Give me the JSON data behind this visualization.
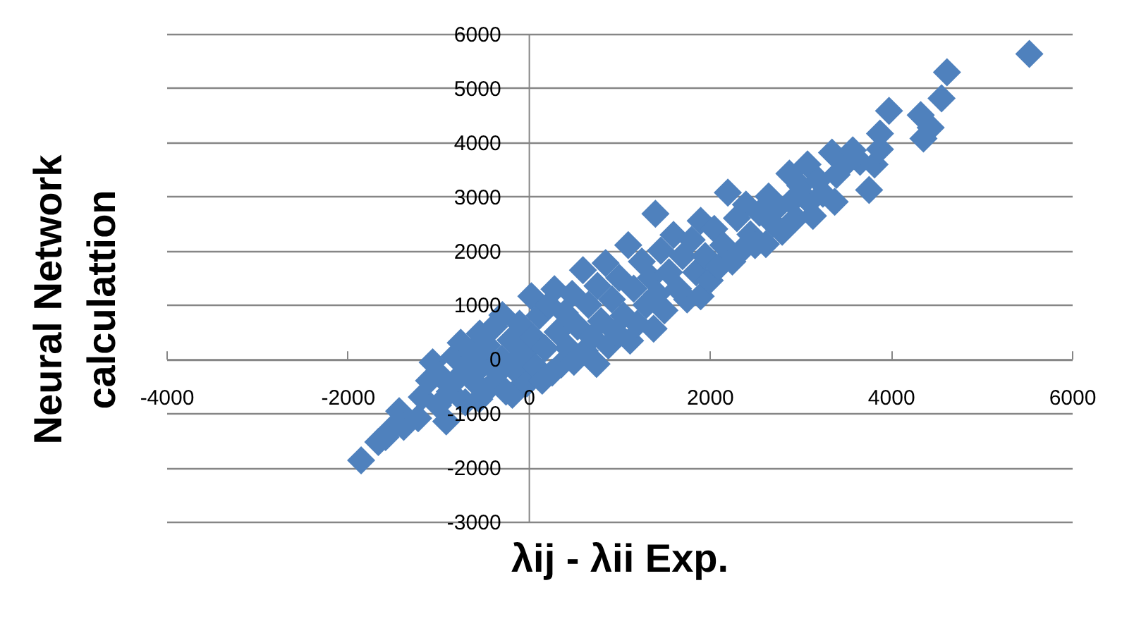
{
  "chart_data": {
    "type": "scatter",
    "xlabel": "λij - λii Exp.",
    "ylabel": "Neural Network calculattion",
    "x": [
      -1850,
      -1660,
      -1580,
      -1520,
      -1430,
      -1380,
      -1220,
      -1180,
      -1100,
      -1060,
      -1000,
      -980,
      -910,
      -870,
      -820,
      -780,
      -750,
      -700,
      -660,
      -620,
      -580,
      -545,
      -540,
      -500,
      -460,
      -420,
      -380,
      -340,
      -300,
      -290,
      -250,
      -200,
      -180,
      -150,
      -100,
      -60,
      -20,
      30,
      50,
      80,
      120,
      150,
      180,
      220,
      260,
      285,
      320,
      360,
      400,
      440,
      480,
      500,
      540,
      600,
      620,
      660,
      700,
      750,
      760,
      800,
      850,
      880,
      920,
      960,
      1000,
      1050,
      1100,
      1120,
      1160,
      1200,
      1250,
      1300,
      1350,
      1380,
      1400,
      1420,
      1460,
      1500,
      1550,
      1600,
      1650,
      1700,
      1750,
      1800,
      1850,
      1900,
      1900,
      1950,
      2000,
      2050,
      2100,
      2150,
      2200,
      2250,
      2300,
      2350,
      2400,
      2450,
      2500,
      2550,
      2620,
      2650,
      2700,
      2750,
      2800,
      2880,
      2900,
      2950,
      3000,
      3080,
      3100,
      3140,
      3200,
      3250,
      3350,
      3380,
      3400,
      3500,
      3580,
      3660,
      3760,
      3820,
      3880,
      3880,
      3980,
      4330,
      4360,
      4440,
      4560,
      4620,
      5530
    ],
    "series": [
      {
        "color": "#4f81bd",
        "values": [
          -1870,
          -1530,
          -1440,
          -1300,
          -960,
          -1250,
          -1090,
          -700,
          -400,
          -60,
          -850,
          -300,
          -1150,
          -600,
          50,
          -350,
          300,
          -800,
          -150,
          150,
          -450,
          -740,
          470,
          -100,
          250,
          -500,
          600,
          -250,
          0,
          810,
          -600,
          350,
          -660,
          -200,
          650,
          100,
          -450,
          1160,
          400,
          -150,
          800,
          -400,
          200,
          1000,
          -250,
          1290,
          500,
          -100,
          850,
          200,
          1200,
          -50,
          600,
          1640,
          150,
          1000,
          400,
          -90,
          1350,
          700,
          1770,
          250,
          1100,
          500,
          1500,
          800,
          2100,
          340,
          1300,
          650,
          1800,
          1000,
          1500,
          560,
          2680,
          1200,
          2000,
          900,
          1600,
          2290,
          1300,
          1900,
          1100,
          2200,
          1600,
          2550,
          1160,
          1900,
          1450,
          2400,
          1700,
          2100,
          3070,
          1800,
          2600,
          2000,
          2850,
          2300,
          2100,
          2700,
          2120,
          3000,
          2500,
          2800,
          2350,
          3420,
          2900,
          2600,
          3200,
          3590,
          2900,
          2640,
          3300,
          3050,
          3810,
          2900,
          3400,
          3600,
          3850,
          3640,
          3120,
          3590,
          3870,
          4160,
          4580,
          4500,
          4070,
          4270,
          4810,
          5290,
          5630
        ]
      }
    ],
    "xlim": [
      -4000,
      6000
    ],
    "ylim": [
      -3000,
      6000
    ],
    "xticks": [
      -4000,
      -2000,
      0,
      2000,
      4000,
      6000
    ],
    "yticks": [
      -3000,
      -2000,
      -1000,
      0,
      1000,
      2000,
      3000,
      4000,
      5000,
      6000
    ],
    "grid": "y",
    "marker": "diamond"
  }
}
